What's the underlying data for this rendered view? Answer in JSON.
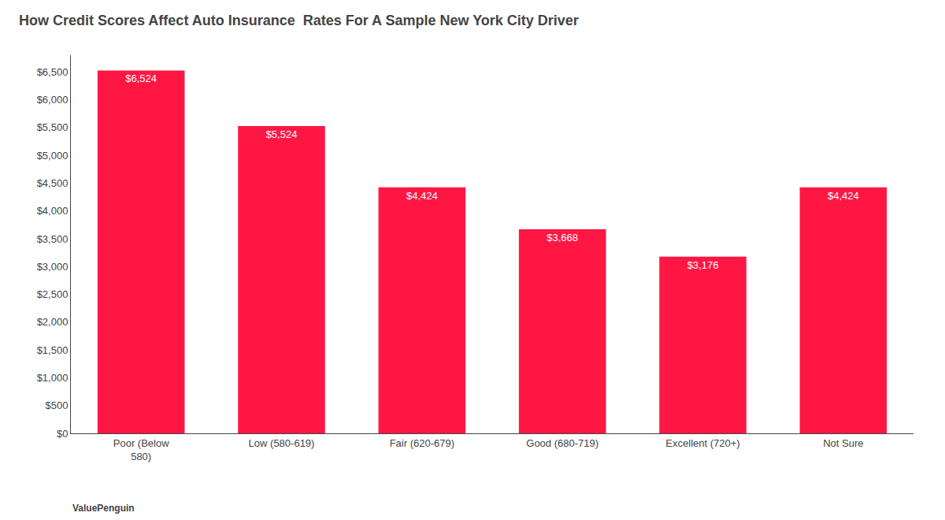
{
  "chart_data": {
    "type": "bar",
    "title": "How Credit Scores Affect Auto Insurance  Rates For A Sample New York City Driver",
    "categories": [
      "Poor (Below\n580)",
      "Low (580-619)",
      "Fair (620-679)",
      "Good (680-719)",
      "Excellent (720+)",
      "Not Sure"
    ],
    "values": [
      6524,
      5524,
      4424,
      3668,
      3176,
      4424
    ],
    "value_labels": [
      "$6,524",
      "$5,524",
      "$4,424",
      "$3,668",
      "$3,176",
      "$4,424"
    ],
    "data_labels": true,
    "color": "#FF1744",
    "ylim": [
      0,
      6800
    ],
    "yticks": [
      {
        "value": 0,
        "label": "$0"
      },
      {
        "value": 500,
        "label": "$500"
      },
      {
        "value": 1000,
        "label": "$1,000"
      },
      {
        "value": 1500,
        "label": "$1,500"
      },
      {
        "value": 2000,
        "label": "$2,000"
      },
      {
        "value": 2500,
        "label": "$2,500"
      },
      {
        "value": 3000,
        "label": "$3,000"
      },
      {
        "value": 3500,
        "label": "$3,500"
      },
      {
        "value": 4000,
        "label": "$4,000"
      },
      {
        "value": 4500,
        "label": "$4,500"
      },
      {
        "value": 5000,
        "label": "$5,000"
      },
      {
        "value": 5500,
        "label": "$5,500"
      },
      {
        "value": 6000,
        "label": "$6,000"
      },
      {
        "value": 6500,
        "label": "$6,500"
      }
    ],
    "grid": false,
    "annotations": [
      {
        "text": "ValuePenguin"
      }
    ]
  }
}
